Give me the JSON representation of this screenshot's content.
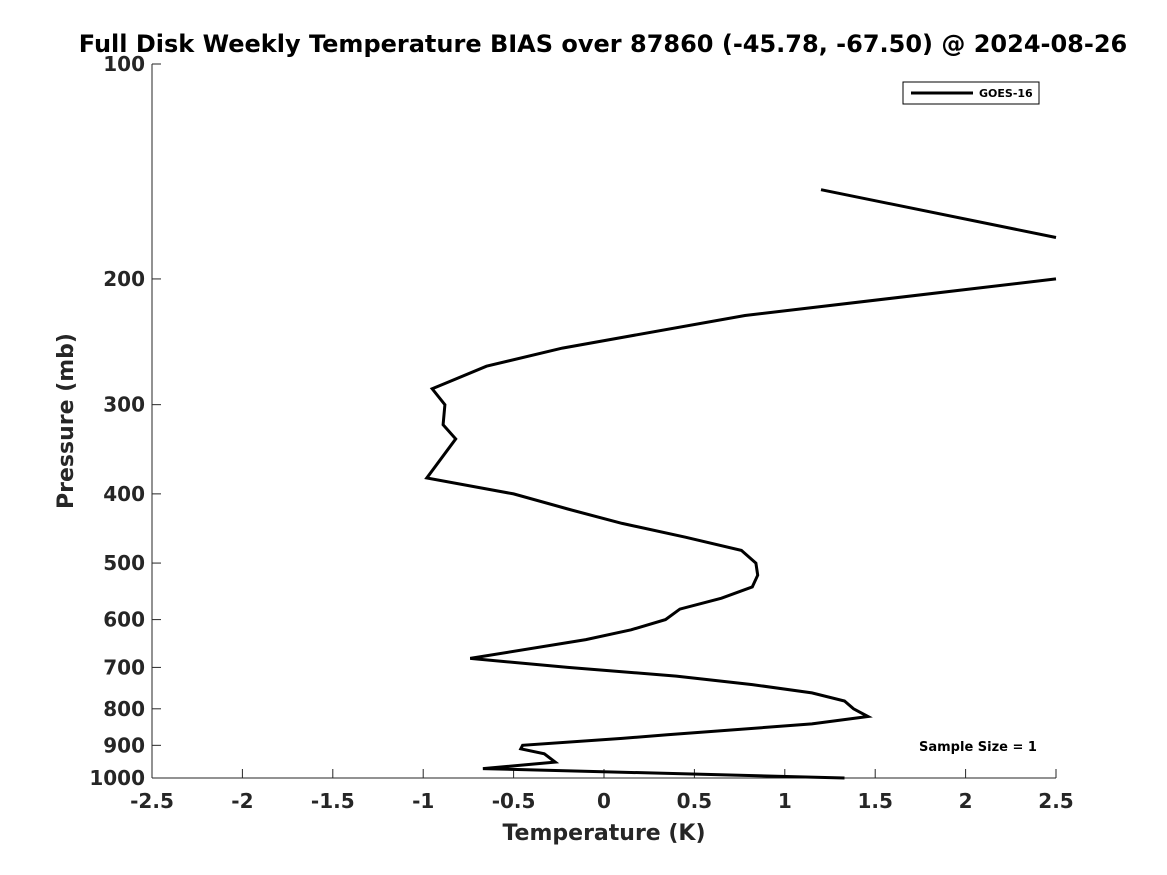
{
  "chart_data": {
    "type": "line",
    "title": "Full Disk Weekly Temperature BIAS over 87860 (-45.78, -67.50) @ 2024-08-26",
    "xlabel": "Temperature (K)",
    "ylabel": "Pressure (mb)",
    "xlim": [
      -2.5,
      2.5
    ],
    "ylim": [
      100,
      1000
    ],
    "y_scale": "log",
    "y_reversed": true,
    "grid": false,
    "legend_position": "top-right",
    "x_ticks": [
      -2.5,
      -2,
      -1.5,
      -1,
      -0.5,
      0,
      0.5,
      1,
      1.5,
      2,
      2.5
    ],
    "x_tick_labels": [
      "-2.5",
      "-2",
      "-1.5",
      "-1",
      "-0.5",
      "0",
      "0.5",
      "1",
      "1.5",
      "2",
      "2.5"
    ],
    "y_ticks": [
      100,
      200,
      300,
      400,
      500,
      600,
      700,
      800,
      900,
      1000
    ],
    "y_tick_labels": [
      "100",
      "200",
      "300",
      "400",
      "500",
      "600",
      "700",
      "800",
      "900",
      "1000"
    ],
    "series": [
      {
        "name": "GOES-16",
        "color": "#000000",
        "segments": [
          [
            [
              1.2,
              150
            ],
            [
              2.5,
              175
            ]
          ],
          [
            [
              2.5,
              200
            ],
            [
              0.78,
              225
            ],
            [
              -0.23,
              250
            ],
            [
              -0.65,
              265
            ],
            [
              -0.95,
              285
            ],
            [
              -0.88,
              300
            ],
            [
              -0.89,
              320
            ],
            [
              -0.82,
              335
            ],
            [
              -0.98,
              380
            ],
            [
              -0.5,
              400
            ],
            [
              -0.2,
              420
            ],
            [
              0.1,
              440
            ],
            [
              0.45,
              460
            ],
            [
              0.76,
              480
            ],
            [
              0.84,
              500
            ],
            [
              0.85,
              520
            ],
            [
              0.82,
              540
            ],
            [
              0.65,
              560
            ],
            [
              0.42,
              580
            ],
            [
              0.34,
              600
            ],
            [
              0.15,
              620
            ],
            [
              -0.1,
              640
            ],
            [
              -0.74,
              680
            ],
            [
              -0.2,
              700
            ],
            [
              0.4,
              720
            ],
            [
              0.82,
              740
            ],
            [
              1.15,
              760
            ],
            [
              1.33,
              780
            ],
            [
              1.38,
              800
            ],
            [
              1.46,
              820
            ],
            [
              1.15,
              840
            ],
            [
              0.35,
              870
            ],
            [
              0.1,
              880
            ],
            [
              -0.45,
              900
            ],
            [
              -0.46,
              910
            ],
            [
              -0.33,
              925
            ],
            [
              -0.27,
              950
            ],
            [
              -0.67,
              970
            ],
            [
              1.33,
              1000
            ]
          ]
        ]
      }
    ],
    "annotations": [
      {
        "text": "Sample Size = 1",
        "x": 2.3,
        "y": 900
      }
    ]
  }
}
